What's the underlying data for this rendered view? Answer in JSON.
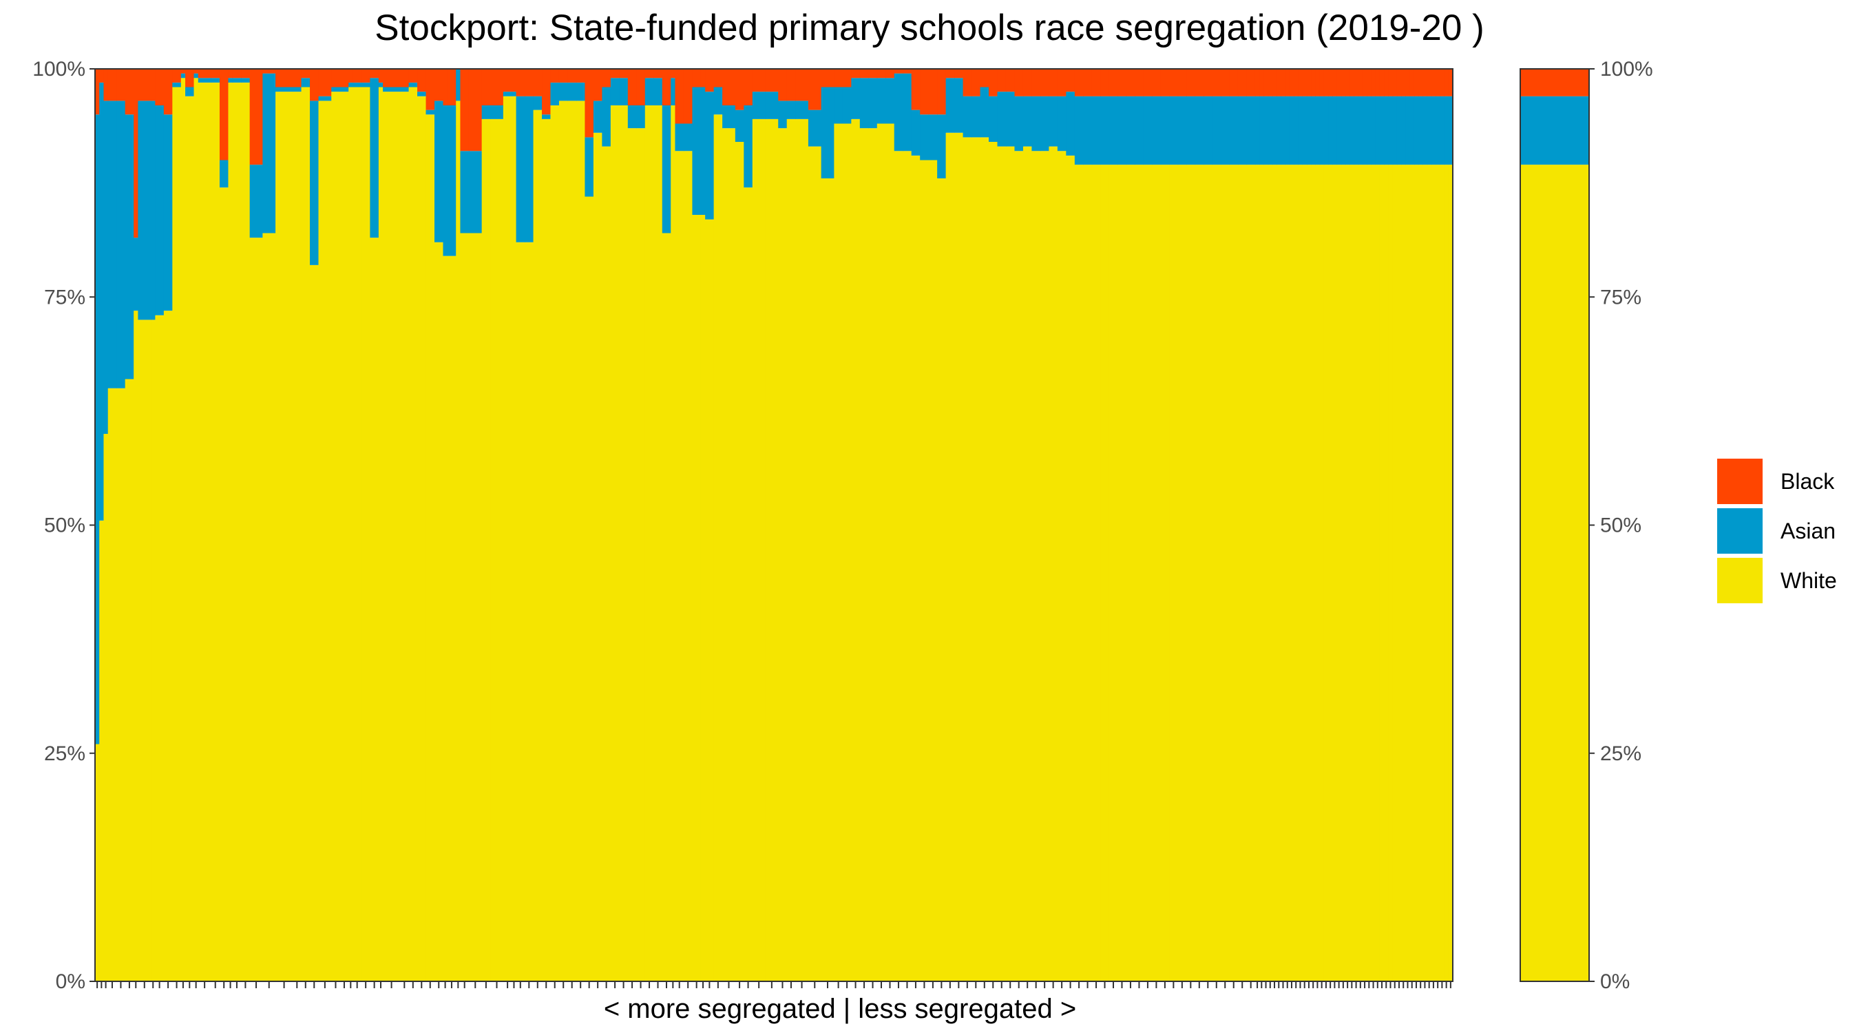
{
  "chart_data": {
    "type": "bar",
    "stacked": true,
    "title": "Stockport: State-funded primary schools race segregation (2019-20 )",
    "xlabel": "< more segregated | less segregated >",
    "ylabel": "",
    "ylim": [
      0,
      100
    ],
    "yticks": [
      "0%",
      "25%",
      "50%",
      "75%",
      "100%"
    ],
    "legend": {
      "position": "right",
      "entries": [
        {
          "name": "Black",
          "color": "#ff4500"
        },
        {
          "name": "Asian",
          "color": "#0099cc"
        },
        {
          "name": "White",
          "color": "#f5e500"
        }
      ]
    },
    "series_order": [
      "White",
      "Asian",
      "Black"
    ],
    "colors": {
      "White": "#f5e500",
      "Asian": "#0099cc",
      "Black": "#ff4500",
      "Other": "#ffffff"
    },
    "schools": {
      "widths": [
        1,
        1,
        1,
        2,
        2,
        2,
        1,
        3,
        1,
        2,
        2,
        2,
        1,
        2,
        1,
        3,
        2,
        2,
        1,
        2,
        2,
        3,
        3,
        4,
        2,
        2,
        2,
        3,
        2,
        2,
        1,
        2,
        2,
        2,
        1,
        4,
        2,
        2,
        2,
        2,
        2,
        1,
        2,
        1,
        2,
        3,
        2,
        3,
        2,
        1,
        2,
        2,
        2,
        2,
        2,
        2,
        2,
        2,
        2,
        2,
        2,
        2,
        2,
        2,
        2,
        2,
        2,
        2,
        1,
        2,
        2,
        2,
        1,
        2,
        2,
        3,
        2,
        2,
        3,
        3,
        2,
        2,
        3,
        3,
        3,
        2,
        2,
        2,
        2,
        2,
        2,
        2,
        2,
        2,
        2,
        2,
        2,
        2,
        2,
        2,
        2,
        2,
        2,
        2,
        2,
        2,
        2,
        2,
        2,
        2,
        2,
        2,
        2,
        2,
        2,
        2,
        2,
        2,
        2,
        2,
        2,
        2,
        2,
        2,
        2,
        2,
        2,
        2,
        2,
        2,
        2,
        2,
        2,
        2,
        1,
        1,
        1,
        1,
        1,
        1,
        1,
        1,
        1,
        1,
        1,
        1,
        1,
        1,
        1,
        1,
        1,
        1,
        1,
        1,
        1,
        1,
        1,
        1,
        1,
        1,
        1,
        1,
        1,
        1,
        1,
        1,
        1,
        1,
        1,
        1,
        1,
        1,
        1,
        1,
        1,
        1,
        1,
        1,
        1,
        1
      ],
      "white": [
        26,
        50.5,
        60,
        65,
        65,
        66,
        73.5,
        72.5,
        72.5,
        73,
        73.5,
        98,
        99,
        97,
        99,
        98.5,
        98.5,
        87,
        98.5,
        98.5,
        98.5,
        81.5,
        82,
        97.5,
        97.5,
        98,
        78.5,
        96.5,
        97.5,
        97.5,
        98,
        98,
        98,
        81.5,
        98,
        97.5,
        97.5,
        98,
        97,
        95,
        81,
        79.5,
        79.5,
        96.5,
        82,
        82,
        94.5,
        94.5,
        97,
        97,
        81,
        81,
        95.5,
        94.5,
        96,
        96.5,
        96.5,
        96.5,
        86,
        93,
        91.5,
        96,
        96,
        93.5,
        93.5,
        96,
        96,
        82,
        96,
        91,
        91,
        84,
        84,
        83.5,
        95,
        93.5,
        92,
        87,
        94.5,
        94.5,
        93.5,
        94.5,
        94.5,
        91.5,
        88,
        94,
        94,
        94.5,
        93.5,
        93.5,
        94,
        94,
        91,
        91,
        90.5,
        90,
        90,
        88,
        93,
        93,
        92.5,
        92.5,
        92.5,
        92,
        91.5,
        91.5,
        91,
        91.5,
        91,
        91,
        91.5,
        91,
        90.5,
        89.5,
        89.5,
        89.5,
        89.5,
        89.5,
        89.5,
        89.5,
        89.5,
        89.5,
        89.5,
        89.5,
        89.5,
        89.5,
        89.5,
        89.5,
        89.5,
        89.5,
        89.5,
        89.5,
        89.5,
        89.5,
        89.5,
        89.5,
        89.5,
        89.5,
        89.5,
        89.5,
        89.5,
        89.5,
        89.5,
        89.5,
        89.5,
        89.5,
        89.5,
        89.5,
        89.5,
        89.5,
        89.5,
        89.5,
        89.5,
        89.5,
        89.5,
        89.5,
        89.5,
        89.5,
        89.5,
        89.5,
        89.5,
        89.5,
        89.5,
        89.5,
        89.5,
        89.5,
        89.5,
        89.5,
        89.5,
        89.5,
        89.5,
        89.5,
        89.5,
        89.5,
        89.5,
        89.5,
        89.5,
        89.5,
        89.5,
        89.5,
        89.5,
        89.5
      ],
      "asian": [
        69,
        48,
        36.5,
        31.5,
        31.5,
        29,
        8,
        24,
        24,
        23,
        21.5,
        0.5,
        0.5,
        1,
        0.5,
        0.5,
        0.5,
        3,
        0.5,
        0.5,
        0.5,
        8,
        17.5,
        0.5,
        0.5,
        1,
        18,
        0.5,
        0.5,
        0.5,
        0.5,
        0.5,
        0.5,
        17.5,
        0.5,
        0.5,
        0.5,
        0.5,
        0.5,
        0.5,
        15.5,
        16.5,
        16.5,
        3.5,
        9,
        9,
        1.5,
        1.5,
        0.5,
        0.5,
        16,
        16,
        1.5,
        0.5,
        2.5,
        2,
        2,
        2,
        6.5,
        3.5,
        6.5,
        3,
        3,
        2.5,
        2.5,
        3,
        3,
        14,
        3,
        3,
        3,
        14,
        14,
        14,
        3,
        2.5,
        3.5,
        9,
        3,
        3,
        3,
        2,
        2,
        4,
        10,
        4,
        4,
        4.5,
        5.5,
        5.5,
        5,
        5,
        8.5,
        8.5,
        5,
        5,
        5,
        7,
        6,
        6,
        4.5,
        4.5,
        5.5,
        5,
        6,
        6,
        6,
        5.5,
        6,
        6,
        5.5,
        6,
        7,
        7.5,
        7.5,
        7.5,
        7.5,
        7.5,
        7.5,
        7.5,
        7.5,
        7.5,
        7.5,
        7.5,
        7.5,
        7.5,
        7.5,
        7.5,
        7.5,
        7.5,
        7.5,
        7.5,
        7.5,
        7.5,
        7.5,
        7.5,
        7.5,
        7.5,
        7.5,
        7.5,
        7.5,
        7.5,
        7.5,
        7.5,
        7.5,
        7.5,
        7.5,
        7.5,
        7.5,
        7.5,
        7.5,
        7.5,
        7.5,
        7.5,
        7.5,
        7.5,
        7.5,
        7.5,
        7.5,
        7.5,
        7.5,
        7.5,
        7.5,
        7.5,
        7.5,
        7.5,
        7.5,
        7.5,
        7.5,
        7.5,
        7.5,
        7.5,
        7.5,
        7.5,
        7.5,
        7.5,
        7.5,
        7.5,
        7.5,
        7.5,
        7.5,
        7.5
      ],
      "black": [
        5,
        1.5,
        3.5,
        3.5,
        3.5,
        5,
        18.5,
        3.5,
        3.5,
        4,
        5,
        1.5,
        0.5,
        2,
        0.5,
        1,
        1,
        10,
        1,
        1,
        1,
        10.5,
        0.5,
        2,
        2,
        1,
        3.5,
        3,
        2,
        2,
        1.5,
        1.5,
        1.5,
        1,
        1.5,
        2,
        2,
        1.5,
        2.5,
        4.5,
        3.5,
        4,
        4,
        0,
        9,
        9,
        4,
        4,
        2.5,
        2.5,
        3,
        3,
        3,
        5,
        1.5,
        1.5,
        1.5,
        1.5,
        7.5,
        3.5,
        2,
        1,
        1,
        4,
        4,
        1,
        1,
        4,
        1,
        6,
        6,
        2,
        2,
        2.5,
        2,
        4,
        4.5,
        4,
        2.5,
        2.5,
        3.5,
        3.5,
        3.5,
        4.5,
        2,
        2,
        2,
        1,
        1,
        1,
        1,
        1,
        0.5,
        0.5,
        4.5,
        5,
        5,
        5,
        1,
        1,
        3,
        3,
        2,
        3,
        2.5,
        2.5,
        3,
        3,
        3,
        3,
        3,
        3,
        2.5,
        3,
        3,
        3,
        3,
        3,
        3,
        3,
        3,
        3,
        3,
        3,
        3,
        3,
        3,
        3,
        3,
        3,
        3,
        3,
        3,
        3,
        3,
        3,
        3,
        3,
        3,
        3,
        3,
        3,
        3,
        3,
        3,
        3,
        3,
        3,
        3,
        3,
        3,
        3,
        3,
        3,
        3,
        3,
        3,
        3,
        3,
        3,
        3,
        3,
        3,
        3,
        3,
        3,
        3,
        3,
        3,
        3,
        3,
        3,
        3,
        3,
        3,
        3,
        3,
        3,
        3,
        3,
        3,
        3,
        3
      ]
    },
    "overall": {
      "white": 89.5,
      "asian": 7.5,
      "black": 3
    }
  }
}
